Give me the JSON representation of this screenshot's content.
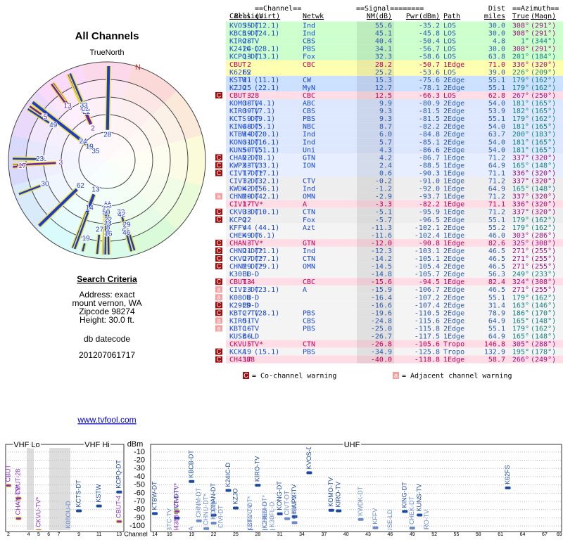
{
  "page": {
    "title": "All Channels",
    "north_label": "TrueNorth",
    "north": "N",
    "link": "www.tvfool.com"
  },
  "search": {
    "title": "Search Criteria",
    "lines": [
      "Address: exact",
      "mount vernon, WA",
      "Zipcode 98274",
      "Height: 30.0 ft."
    ],
    "datecode_label": "db datecode",
    "datecode": "201207061717"
  },
  "table": {
    "group_headers": [
      "==Channel==",
      "==Signal========",
      "Dist",
      "==Azimuth=="
    ],
    "columns": [
      "Callsign",
      "Real",
      "(Virt)",
      "Netwk",
      "NM(dB)",
      "Pwr(dBm)",
      "Path",
      "miles",
      "True",
      "(Magn)"
    ],
    "rows": [
      {
        "callsign": "KVOS-DT",
        "real": 35,
        "virt": "(12.1)",
        "netwk": "Ind",
        "nm": "55.6",
        "pwr": "-35.2",
        "path": "LOS",
        "miles": "30.0",
        "true": "308°",
        "magn": "(291°)",
        "bg": "#ccffcc"
      },
      {
        "callsign": "KBCB-DT",
        "real": 19,
        "virt": "(24.1)",
        "netwk": "Ind",
        "nm": "45.1",
        "pwr": "-45.8",
        "path": "LOS",
        "miles": "30.0",
        "true": "308°",
        "magn": "(291°)",
        "bg": "#ccffcc"
      },
      {
        "callsign": "KIRO-TV",
        "real": 28,
        "netwk": "CBS",
        "nm": "40.4",
        "pwr": "-50.4",
        "path": "LOS",
        "miles": "4.8",
        "true": "1°",
        "magn": "(344°)",
        "bg": "#ccffcc"
      },
      {
        "callsign": "K24IC-D",
        "real": 24,
        "virt": "(28.1)",
        "netwk": "PBS",
        "nm": "34.1",
        "pwr": "-56.7",
        "path": "LOS",
        "miles": "30.0",
        "true": "308°",
        "magn": "(291°)",
        "bg": "#ccffcc"
      },
      {
        "callsign": "KCPQ-DT",
        "real": 13,
        "virt": "(13.1)",
        "netwk": "Fox",
        "nm": "32.3",
        "pwr": "-58.6",
        "path": "LOS",
        "miles": "63.8",
        "true": "201°",
        "magn": "(184°)",
        "bg": "#ccffcc"
      },
      {
        "callsign": "CBUT",
        "real": 2,
        "netwk": "CBC",
        "nm": "28.2",
        "pwr": "-50.7",
        "path": "1Edge",
        "miles": "71.0",
        "true": "336°",
        "magn": "(320°)",
        "bg": "#ffffb0",
        "analog": true
      },
      {
        "callsign": "K62FS",
        "real": 62,
        "nm": "25.2",
        "pwr": "-53.6",
        "path": "LOS",
        "miles": "39.0",
        "true": "226°",
        "magn": "(209°)",
        "bg": "#ffffb0"
      },
      {
        "callsign": "KSTW",
        "real": 11,
        "virt": "(11.1)",
        "netwk": "CW",
        "nm": "15.3",
        "pwr": "-75.6",
        "path": "2Edge",
        "miles": "55.1",
        "true": "179°",
        "magn": "(162°)",
        "bg": "#cce0ff"
      },
      {
        "callsign": "KZJO",
        "real": 25,
        "virt": "(22.1)",
        "netwk": "MyN",
        "nm": "12.7",
        "pwr": "-78.1",
        "path": "2Edge",
        "miles": "55.1",
        "true": "179°",
        "magn": "(162°)",
        "bg": "#cce0ff"
      },
      {
        "callsign": "CBUT-28",
        "real": 3,
        "netwk": "CBC",
        "nm": "12.5",
        "pwr": "-66.3",
        "path": "LOS",
        "miles": "62.8",
        "true": "267°",
        "magn": "(250°)",
        "bg": "#ffdde6",
        "analog": true,
        "warning": "C"
      },
      {
        "callsign": "KOMO-TV",
        "real": 38,
        "virt": "(4.1)",
        "netwk": "ABC",
        "nm": "9.9",
        "pwr": "-80.9",
        "path": "2Edge",
        "miles": "54.0",
        "true": "181°",
        "magn": "(165°)",
        "bg": "#dde8ff"
      },
      {
        "callsign": "KIRO-TV",
        "real": 39,
        "virt": "(7.1)",
        "netwk": "CBS",
        "nm": "9.3",
        "pwr": "-81.5",
        "path": "2Edge",
        "miles": "53.9",
        "true": "182°",
        "magn": "(165°)",
        "bg": "#dde8ff"
      },
      {
        "callsign": "KCTS-DT",
        "real": 9,
        "virt": "(9.1)",
        "netwk": "PBS",
        "nm": "9.3",
        "pwr": "-81.5",
        "path": "2Edge",
        "miles": "55.1",
        "true": "179°",
        "magn": "(162°)",
        "bg": "#dde8ff"
      },
      {
        "callsign": "KING-DT",
        "real": 48,
        "virt": "(5.1)",
        "netwk": "NBC",
        "nm": "8.7",
        "pwr": "-82.2",
        "path": "2Edge",
        "miles": "54.0",
        "true": "181°",
        "magn": "(165°)",
        "bg": "#dde8ff"
      },
      {
        "callsign": "KTBW-DT",
        "real": 14,
        "virt": "(20.1)",
        "netwk": "Ind",
        "nm": "6.0",
        "pwr": "-84.8",
        "path": "2Edge",
        "miles": "63.7",
        "true": "200°",
        "magn": "(183°)",
        "bg": "#dde8ff"
      },
      {
        "callsign": "KONG-DT",
        "real": 31,
        "virt": "(16.1)",
        "netwk": "Ind",
        "nm": "5.7",
        "pwr": "-85.1",
        "path": "2Edge",
        "miles": "54.0",
        "true": "181°",
        "magn": "(165°)",
        "bg": "#dde8ff"
      },
      {
        "callsign": "KUNS-TV",
        "real": 50,
        "virt": "(51.1)",
        "netwk": "Uni",
        "nm": "4.3",
        "pwr": "-86.6",
        "path": "2Edge",
        "miles": "54.0",
        "true": "181°",
        "magn": "(165°)",
        "bg": "#dde8ff"
      },
      {
        "callsign": "CHAN-DT",
        "real": 22,
        "virt": "(8.1)",
        "netwk": "GTN",
        "nm": "4.2",
        "pwr": "-86.7",
        "path": "1Edge",
        "miles": "71.2",
        "true": "337°",
        "magn": "(320°)",
        "bg": "#e6eeff",
        "warning": "C"
      },
      {
        "callsign": "KWPX-TV",
        "real": 33,
        "virt": "(33.1)",
        "netwk": "ION",
        "nm": "2.4",
        "pwr": "-88.5",
        "path": "1Edge",
        "miles": "64.9",
        "true": "165°",
        "magn": "(148°)",
        "bg": "#e6eeff",
        "warning": "C"
      },
      {
        "callsign": "CIVT-DT*",
        "real": 17,
        "virt": "(17.1)",
        "nm": "0.6",
        "pwr": "-90.3",
        "path": "1Edge",
        "miles": "71.1",
        "true": "336°",
        "magn": "(320°)",
        "bg": "#e6eeff",
        "warning": "C"
      },
      {
        "callsign": "CIVT-DT",
        "real": 32,
        "virt": "(32.1)",
        "netwk": "CTV",
        "nm": "-0.2",
        "pwr": "-91.0",
        "path": "1Edge",
        "miles": "71.2",
        "true": "337°",
        "magn": "(320°)",
        "bg": "#eeeeee"
      },
      {
        "callsign": "KWDK-DT",
        "real": 42,
        "virt": "(56.1)",
        "netwk": "Ind",
        "nm": "-1.2",
        "pwr": "-92.0",
        "path": "1Edge",
        "miles": "64.9",
        "true": "165°",
        "magn": "(148°)",
        "bg": "#eeeeee"
      },
      {
        "callsign": "CHNM-DT",
        "real": 20,
        "virt": "(42.1)",
        "netwk": "OMN",
        "nm": "-2.9",
        "pwr": "-93.7",
        "path": "1Edge",
        "miles": "71.2",
        "true": "337°",
        "magn": "(320°)",
        "bg": "#eeeeee",
        "warning": "a"
      },
      {
        "callsign": "CIVI-TV*",
        "real": 17,
        "netwk": "A",
        "nm": "-3.3",
        "pwr": "-82.2",
        "path": "1Edge",
        "miles": "71.1",
        "true": "336°",
        "magn": "(320°)",
        "bg": "#ffdde6",
        "analog": true
      },
      {
        "callsign": "CKVU-DT",
        "real": 33,
        "virt": "(10.1)",
        "netwk": "CTN",
        "nm": "-5.1",
        "pwr": "-95.9",
        "path": "1Edge",
        "miles": "71.2",
        "true": "337°",
        "magn": "(320°)",
        "bg": "#eeeeee",
        "warning": "C"
      },
      {
        "callsign": "KCPQ",
        "real": 22,
        "netwk": "Fox",
        "nm": "-5.7",
        "pwr": "-96.5",
        "path": "2Edge",
        "miles": "55.1",
        "true": "179°",
        "magn": "(162°)",
        "bg": "#eeeeee",
        "warning": "C"
      },
      {
        "callsign": "KFFV",
        "real": 44,
        "virt": "(44.1)",
        "netwk": "Azt",
        "nm": "-11.3",
        "pwr": "-102.1",
        "path": "2Edge",
        "miles": "55.2",
        "true": "179°",
        "magn": "(162°)",
        "bg": "#f4f4f4"
      },
      {
        "callsign": "CHEK-DT",
        "real": 49,
        "virt": "(6.1)",
        "nm": "-11.6",
        "pwr": "-102.4",
        "path": "1Edge",
        "miles": "46.0",
        "true": "303°",
        "magn": "(286°)",
        "bg": "#f4f4f4"
      },
      {
        "callsign": "CHAN-TV*",
        "real": 3,
        "netwk": "GTN",
        "nm": "-12.0",
        "pwr": "-90.8",
        "path": "1Edge",
        "miles": "82.6",
        "true": "325°",
        "magn": "(308°)",
        "bg": "#ffdde6",
        "analog": true,
        "warning": "C"
      },
      {
        "callsign": "CHNU-DT*",
        "real": 21,
        "virt": "(21.1)",
        "netwk": "Ind",
        "nm": "-12.3",
        "pwr": "-103.1",
        "path": "2Edge",
        "miles": "46.5",
        "true": "271°",
        "magn": "(255°)",
        "bg": "#f4f4f4",
        "warning": "C"
      },
      {
        "callsign": "CKVU-DT*",
        "real": 27,
        "virt": "(27.1)",
        "netwk": "CTN",
        "nm": "-14.2",
        "pwr": "-105.1",
        "path": "2Edge",
        "miles": "46.5",
        "true": "271°",
        "magn": "(255°)",
        "bg": "#f4f4f4",
        "warning": "C"
      },
      {
        "callsign": "CHNM-DT*",
        "real": 29,
        "virt": "(29.1)",
        "netwk": "OMN",
        "nm": "-14.5",
        "pwr": "-105.4",
        "path": "2Edge",
        "miles": "46.5",
        "true": "271°",
        "magn": "(255°)",
        "bg": "#f4f4f4",
        "warning": "C"
      },
      {
        "callsign": "K30FL-D",
        "real": 30,
        "nm": "-14.8",
        "pwr": "-105.7",
        "path": "2Edge",
        "miles": "56.3",
        "true": "249°",
        "magn": "(233°)",
        "bg": "#f4f4f4"
      },
      {
        "callsign": "CBUT-4",
        "real": 13,
        "netwk": "CBC",
        "nm": "-15.6",
        "pwr": "-94.5",
        "path": "1Edge",
        "miles": "82.4",
        "true": "324°",
        "magn": "(308°)",
        "bg": "#ffdde6",
        "analog": true,
        "warning": "C"
      },
      {
        "callsign": "CIVI-DT",
        "real": 23,
        "virt": "(23.1)",
        "netwk": "A",
        "nm": "-15.9",
        "pwr": "-106.7",
        "path": "2Edge",
        "miles": "46.5",
        "true": "271°",
        "magn": "(255°)",
        "bg": "#f4f4f4",
        "warning": "a"
      },
      {
        "callsign": "K08OU-D",
        "real": 8,
        "nm": "-16.4",
        "pwr": "-107.2",
        "path": "2Edge",
        "miles": "55.1",
        "true": "179°",
        "magn": "(162°)",
        "bg": "#f4f4f4",
        "warning": "a"
      },
      {
        "callsign": "K29ED-D",
        "real": 29,
        "nm": "-16.6",
        "pwr": "-107.4",
        "path": "2Edge",
        "miles": "31.4",
        "true": "163°",
        "magn": "(146°)",
        "bg": "#f4f4f4",
        "warning": "C"
      },
      {
        "callsign": "KBTC-TV",
        "real": 27,
        "virt": "(28.1)",
        "netwk": "PBS",
        "nm": "-19.6",
        "pwr": "-110.5",
        "path": "2Edge",
        "miles": "78.9",
        "true": "186°",
        "magn": "(170°)",
        "bg": "#f4f4f4",
        "warning": "C"
      },
      {
        "callsign": "KIRO-TV",
        "real": 51,
        "netwk": "CBS",
        "nm": "-24.8",
        "pwr": "-115.6",
        "path": "2Edge",
        "miles": "64.9",
        "true": "165°",
        "magn": "(148°)",
        "bg": "#f4f4f4",
        "warning": "a"
      },
      {
        "callsign": "KBTC-TV",
        "real": 16,
        "netwk": "PBS",
        "nm": "-25.0",
        "pwr": "-115.8",
        "path": "2Edge",
        "miles": "55.1",
        "true": "179°",
        "magn": "(162°)",
        "bg": "#f4f4f4",
        "warning": "a"
      },
      {
        "callsign": "KUSE-LD",
        "real": 46,
        "nm": "-26.7",
        "pwr": "-117.5",
        "path": "1Edge",
        "miles": "64.9",
        "true": "165°",
        "magn": "(148°)",
        "bg": "#f4f4f4"
      },
      {
        "callsign": "CKVU-TV*",
        "real": 5,
        "netwk": "CTN",
        "nm": "-26.8",
        "pwr": "-105.6",
        "path": "Tropo",
        "miles": "146.8",
        "true": "305°",
        "magn": "(288°)",
        "bg": "#ffdde6",
        "analog": true
      },
      {
        "callsign": "KCKA",
        "real": 19,
        "virt": "(15.1)",
        "netwk": "PBS",
        "nm": "-34.9",
        "pwr": "-125.8",
        "path": "Tropo",
        "miles": "132.9",
        "true": "195°",
        "magn": "(178°)",
        "bg": "#f4f4f4",
        "warning": "C"
      },
      {
        "callsign": "CH4388",
        "real": 17,
        "nm": "-40.0",
        "pwr": "-118.8",
        "path": "1Edge",
        "miles": "58.7",
        "true": "266°",
        "magn": "(249°)",
        "bg": "#ffdde6",
        "analog": true,
        "warning": "C"
      }
    ],
    "legend": {
      "co_icon": "C",
      "co_text": "= Co-channel warning",
      "adj_icon": "a",
      "adj_text": "= Adjacent channel warning"
    }
  },
  "spectrum": {
    "bands": [
      "VHF Lo",
      "VHF Hi",
      "UHF"
    ],
    "y_label": "dBm",
    "x_label": "Channel",
    "ylim": [
      -5,
      -105
    ],
    "yticks": [
      -10,
      -20,
      -30,
      -40,
      -50,
      -60,
      -70,
      -80,
      -90,
      -100
    ],
    "vhf_xticks": [
      2,
      4,
      5,
      6,
      7,
      9,
      11,
      13
    ],
    "uhf_xticks": [
      14,
      16,
      19,
      22,
      25,
      28,
      31,
      34,
      37,
      40,
      43,
      46,
      49,
      52,
      55,
      58,
      61,
      64,
      67,
      69
    ]
  }
}
